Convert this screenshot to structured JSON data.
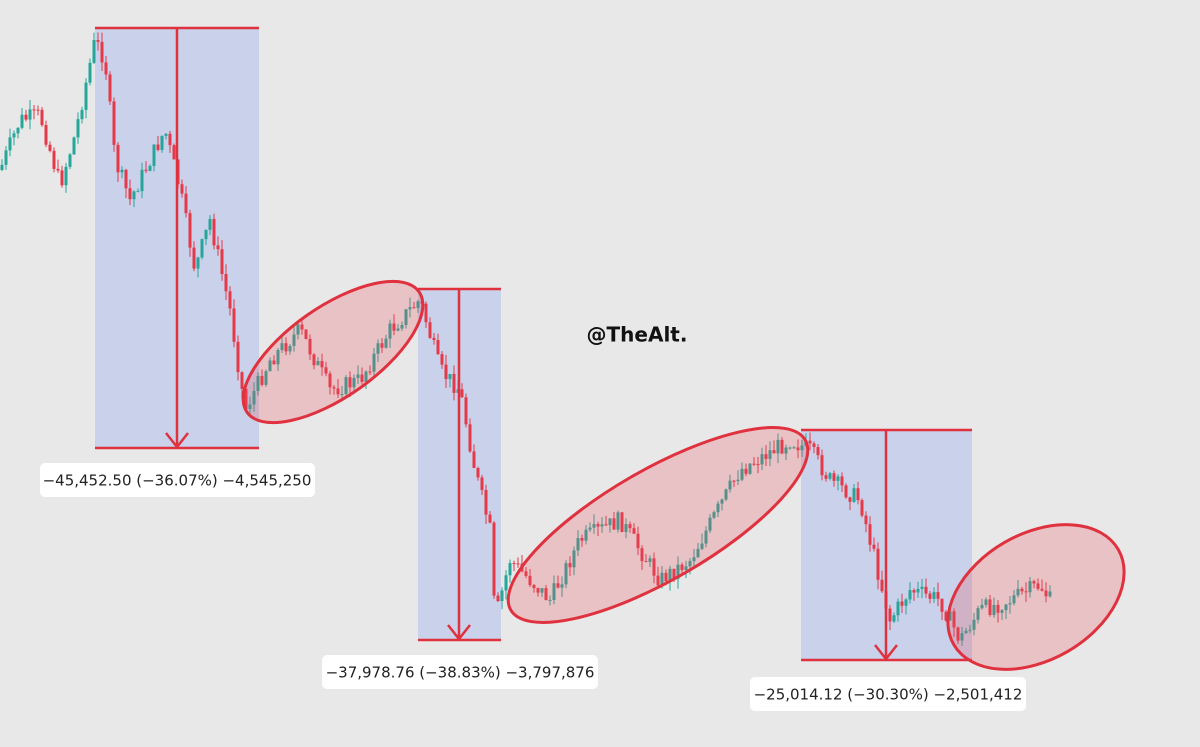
{
  "watermark": "@TheAlt.",
  "measurements": [
    {
      "label": "−45,452.50 (−36.07%) −4,545,250"
    },
    {
      "label": "−37,978.76 (−38.83%) −3,797,876"
    },
    {
      "label": "−25,014.12 (−30.30%) −2,501,412"
    }
  ]
}
